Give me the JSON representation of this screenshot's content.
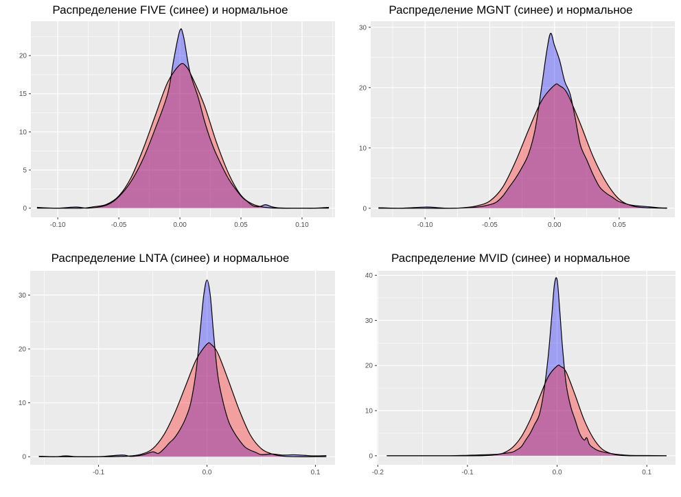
{
  "chart_data": [
    {
      "type": "area",
      "title": "Распределение FIVE (синее) и нормальное",
      "xlim": [
        -0.122,
        0.127
      ],
      "ylim": [
        -1.2,
        24.5
      ],
      "xticks": [
        -0.1,
        -0.05,
        0.0,
        0.05,
        0.1
      ],
      "xtick_labels": [
        "-0.10",
        "-0.05",
        "0.00",
        "0.05",
        "0.10"
      ],
      "yticks": [
        0,
        5,
        10,
        15,
        20
      ],
      "ytick_labels": [
        "0",
        "5",
        "10",
        "15",
        "20"
      ],
      "grid": true,
      "colors": {
        "empirical": "#0000ff",
        "normal": "#ff0000"
      },
      "series": [
        {
          "x": [
            -0.117,
            -0.1,
            -0.085,
            -0.075,
            -0.06,
            -0.05,
            -0.04,
            -0.03,
            -0.02,
            -0.01,
            -0.005,
            0,
            0.003,
            0.008,
            0.015,
            0.02,
            0.025,
            0.03,
            0.04,
            0.05,
            0.055,
            0.06,
            0.065,
            0.07,
            0.075,
            0.08,
            0.09,
            0.1,
            0.11,
            0.122
          ],
          "y": [
            0.1,
            0,
            0.15,
            0,
            0.4,
            1.5,
            3.5,
            6.5,
            10.5,
            15,
            19.5,
            23.3,
            22.5,
            18,
            14.5,
            11.5,
            9,
            7,
            3.8,
            1.6,
            0.9,
            0.3,
            0.2,
            0.45,
            0.2,
            0.05,
            0,
            0,
            0,
            0.1
          ]
        },
        {
          "x": [
            -0.117,
            -0.1,
            -0.08,
            -0.07,
            -0.06,
            -0.05,
            -0.04,
            -0.03,
            -0.02,
            -0.01,
            0,
            0.005,
            0.01,
            0.02,
            0.03,
            0.04,
            0.05,
            0.06,
            0.07,
            0.08,
            0.1,
            0.122
          ],
          "y": [
            0,
            0,
            0,
            0.2,
            0.5,
            1.6,
            4,
            7.8,
            12.2,
            16.5,
            18.8,
            18.6,
            17.2,
            13.5,
            8.6,
            4.5,
            1.7,
            0.5,
            0.1,
            0,
            0,
            0
          ]
        }
      ]
    },
    {
      "type": "area",
      "title": "Распределение MGNT (синее) и нормальное",
      "xlim": [
        -0.142,
        0.093
      ],
      "ylim": [
        -1.5,
        31
      ],
      "xticks": [
        -0.1,
        -0.05,
        0.0,
        0.05
      ],
      "xtick_labels": [
        "-0.10",
        "-0.05",
        "0.00",
        "0.05"
      ],
      "yticks": [
        0,
        10,
        20,
        30
      ],
      "ytick_labels": [
        "0",
        "10",
        "20",
        "30"
      ],
      "grid": true,
      "colors": {
        "empirical": "#0000ff",
        "normal": "#ff0000"
      },
      "series": [
        {
          "x": [
            -0.136,
            -0.12,
            -0.1,
            -0.09,
            -0.08,
            -0.06,
            -0.05,
            -0.045,
            -0.04,
            -0.035,
            -0.03,
            -0.025,
            -0.02,
            -0.015,
            -0.01,
            -0.006,
            -0.003,
            0,
            0.004,
            0.008,
            0.012,
            0.016,
            0.02,
            0.025,
            0.03,
            0.035,
            0.04,
            0.045,
            0.05,
            0.06,
            0.07,
            0.08,
            0.087
          ],
          "y": [
            0.1,
            0,
            0.2,
            0.1,
            0,
            0.2,
            0.6,
            1,
            2,
            3.5,
            5,
            6.8,
            9,
            13,
            20,
            26,
            29,
            27,
            24.5,
            21,
            19,
            15,
            10.5,
            8,
            5.5,
            3.5,
            2.5,
            1.8,
            1.1,
            0.5,
            0.3,
            0.1,
            0.05
          ]
        },
        {
          "x": [
            -0.136,
            -0.1,
            -0.08,
            -0.07,
            -0.06,
            -0.05,
            -0.04,
            -0.03,
            -0.02,
            -0.01,
            0,
            0.004,
            0.01,
            0.02,
            0.03,
            0.04,
            0.05,
            0.06,
            0.07,
            0.087
          ],
          "y": [
            0,
            0,
            0,
            0.1,
            0.4,
            1.2,
            3.5,
            7.8,
            13,
            17.8,
            20.4,
            20.3,
            19,
            14,
            8.5,
            4.3,
            1.5,
            0.4,
            0.1,
            0
          ]
        }
      ]
    },
    {
      "type": "area",
      "title": "Распределение LNTA (синее) и нормальное",
      "xlim": [
        -0.163,
        0.118
      ],
      "ylim": [
        -1.5,
        34.5
      ],
      "xticks": [
        -0.1,
        0.0,
        0.1
      ],
      "xtick_labels": [
        "-0.1",
        "0.0",
        "0.1"
      ],
      "yticks": [
        0,
        10,
        20,
        30
      ],
      "ytick_labels": [
        "0",
        "10",
        "20",
        "30"
      ],
      "grid": true,
      "colors": {
        "empirical": "#0000ff",
        "normal": "#ff0000"
      },
      "series": [
        {
          "x": [
            -0.155,
            -0.14,
            -0.13,
            -0.12,
            -0.1,
            -0.08,
            -0.075,
            -0.07,
            -0.06,
            -0.05,
            -0.045,
            -0.04,
            -0.035,
            -0.03,
            -0.025,
            -0.02,
            -0.015,
            -0.01,
            -0.006,
            -0.003,
            0,
            0.003,
            0.006,
            0.01,
            0.015,
            0.02,
            0.025,
            0.03,
            0.035,
            0.04,
            0.045,
            0.05,
            0.06,
            0.07,
            0.08,
            0.09,
            0.1,
            0.11
          ],
          "y": [
            0.1,
            0,
            0.15,
            0,
            0,
            0.3,
            0.25,
            0.05,
            0.3,
            0.9,
            0.6,
            1.4,
            2.5,
            3.5,
            5,
            7,
            10,
            16,
            24,
            30,
            32.8,
            30,
            23,
            15,
            10,
            6.5,
            4.5,
            3,
            1.8,
            1.2,
            0.8,
            0.4,
            0.5,
            0.3,
            0.35,
            0.25,
            0.15,
            0.2
          ]
        },
        {
          "x": [
            -0.155,
            -0.1,
            -0.08,
            -0.07,
            -0.06,
            -0.05,
            -0.04,
            -0.03,
            -0.02,
            -0.01,
            0,
            0.004,
            0.01,
            0.02,
            0.03,
            0.04,
            0.05,
            0.06,
            0.07,
            0.08,
            0.1,
            0.11
          ],
          "y": [
            0,
            0,
            0.05,
            0.15,
            0.5,
            1.5,
            4,
            8,
            13,
            18,
            20.9,
            20.8,
            19.2,
            14,
            8.5,
            4,
            1.5,
            0.5,
            0.1,
            0,
            0,
            0
          ]
        }
      ]
    },
    {
      "type": "area",
      "title": "Распределение MVID (синее) и нормальное",
      "xlim": [
        -0.201,
        0.132
      ],
      "ylim": [
        -2,
        41
      ],
      "xticks": [
        -0.2,
        -0.1,
        0.0,
        0.1
      ],
      "xtick_labels": [
        "-0.2",
        "-0.1",
        "0.0",
        "0.1"
      ],
      "yticks": [
        0,
        10,
        20,
        30,
        40
      ],
      "ytick_labels": [
        "0",
        "10",
        "20",
        "30",
        "40"
      ],
      "grid": true,
      "colors": {
        "empirical": "#0000ff",
        "normal": "#ff0000"
      },
      "series": [
        {
          "x": [
            -0.19,
            -0.15,
            -0.12,
            -0.1,
            -0.07,
            -0.06,
            -0.05,
            -0.045,
            -0.04,
            -0.035,
            -0.03,
            -0.025,
            -0.02,
            -0.015,
            -0.01,
            -0.006,
            -0.003,
            0,
            0.003,
            0.006,
            0.01,
            0.015,
            0.02,
            0.025,
            0.03,
            0.033,
            0.036,
            0.04,
            0.045,
            0.05,
            0.06,
            0.07,
            0.08,
            0.1,
            0.122
          ],
          "y": [
            0,
            0,
            0,
            0.1,
            0.3,
            0.5,
            0.8,
            1.3,
            2,
            3.5,
            5,
            7,
            9,
            14,
            22,
            31,
            38,
            39,
            32,
            24,
            16,
            11,
            8,
            5,
            3.5,
            4,
            2.5,
            1.8,
            1.2,
            0.9,
            0.5,
            0.25,
            0.1,
            0.05,
            0
          ]
        },
        {
          "x": [
            -0.19,
            -0.1,
            -0.08,
            -0.07,
            -0.06,
            -0.05,
            -0.04,
            -0.03,
            -0.02,
            -0.01,
            0,
            0.004,
            0.01,
            0.02,
            0.03,
            0.04,
            0.05,
            0.06,
            0.07,
            0.08,
            0.1,
            0.122
          ],
          "y": [
            0,
            0,
            0.05,
            0.2,
            0.6,
            1.8,
            4.2,
            8,
            12.8,
            17.5,
            19.9,
            19.8,
            18.6,
            13.5,
            8,
            4,
            1.5,
            0.5,
            0.1,
            0,
            0,
            0
          ]
        }
      ]
    }
  ]
}
